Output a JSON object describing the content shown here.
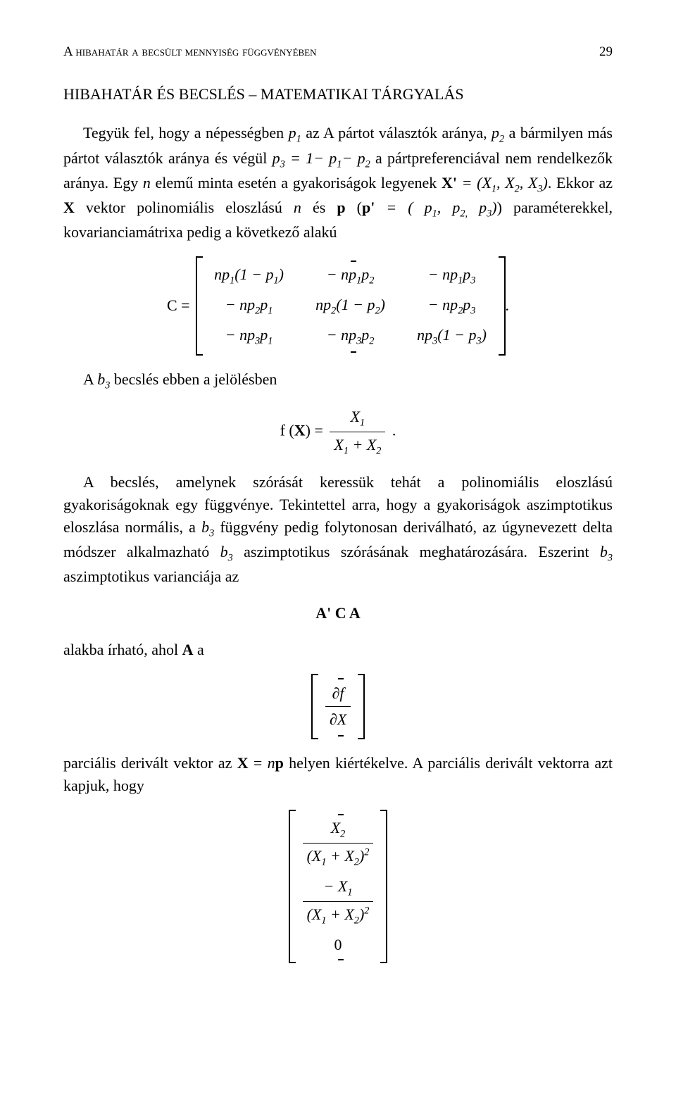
{
  "header": {
    "running_title": "A hibahatár a becsült mennyiség függvényében",
    "page_number": "29"
  },
  "section_title": "HIBAHATÁR ÉS BECSLÉS – MATEMATIKAI TÁRGYALÁS",
  "para1_pre": "Tegyük fel, hogy a népességben ",
  "para1_mid1": " az A pártot választók aránya, ",
  "para1_mid2": " a bármilyen más pártot választók aránya és végül ",
  "para1_mid3": " a pártpreferenciával nem rendelkezők aránya. Egy ",
  "para1_mid4": " elemű minta esetén a gyakoriságok legyenek ",
  "para1_mid5": ". Ekkor az ",
  "para1_mid6": " vektor polinomiális eloszlású ",
  "para1_mid7": " és ",
  "para1_mid8": ") paraméterekkel, kovarianciamátrixa pedig a következő alakú",
  "matrix_C": {
    "prefix": "C =",
    "rows": [
      [
        "np_1(1 − p_1)",
        "− np_1p_2",
        "− np_1p_3"
      ],
      [
        "− np_2p_1",
        "np_2(1 − p_2)",
        "− np_2p_3"
      ],
      [
        "− np_3p_1",
        "− np_3p_2",
        "np_3(1 − p_3)"
      ]
    ],
    "suffix": "."
  },
  "para2_pre": "A ",
  "para2_post": " becslés ebben a jelölésben",
  "eq_fX": {
    "lhs": "f (X) =",
    "num": "X_1",
    "den": "X_1 + X_2",
    "suffix": "."
  },
  "para3": "A becslés, amelynek szórását keressük tehát a polinomiális eloszlású gyakoriságoknak egy függvénye. Tekintettel arra, hogy a gyakoriságok aszimptotikus eloszlása normális, a ",
  "para3_mid1": " függvény pedig folytonosan deriválható, az úgynevezett delta módszer alkalmazható ",
  "para3_mid2": " aszimptotikus szórásának meghatározására. Eszerint ",
  "para3_end": " aszimptotikus varianciája az",
  "eq_ACA": "A' C A",
  "para4": "alakba írható, ahol ",
  "para4_end": " a",
  "partial": {
    "num": "∂f",
    "den": "∂X"
  },
  "para5_pre": "parciális derivált vektor az ",
  "para5_mid": " helyen kiértékelve. A parciális derivált vektorra azt kapjuk, hogy",
  "col_matrix": {
    "r1_num": "X_2",
    "r1_den": "(X_1 + X_2)^2",
    "r2_num": "− X_1",
    "r2_den": "(X_1 + X_2)^2",
    "r3": "0"
  },
  "symbols": {
    "p1": "p_1",
    "p2": "p_2",
    "p3": "p_3",
    "p3eq": "p_3 = 1− p_1− p_2",
    "n": "n",
    "Xprime": "X' = (X_1, X_2, X_3)",
    "X": "X",
    "pprime": "p (p' = ( p_1, p_2, p_3)",
    "b3": "b_3",
    "A": "A",
    "Xnp": "X = np"
  }
}
